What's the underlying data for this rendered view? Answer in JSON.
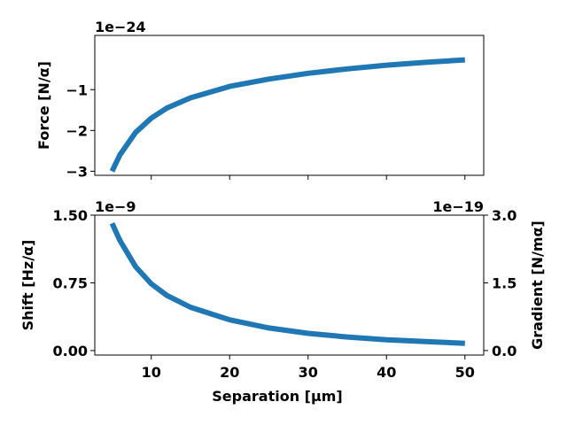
{
  "chart_data": [
    {
      "type": "line",
      "panel": "top",
      "ylabel": "Force [N/α]",
      "offset_text": "1e−24",
      "x": [
        5,
        6,
        8,
        10,
        12,
        15,
        20,
        25,
        30,
        35,
        40,
        45,
        50
      ],
      "series": [
        {
          "values": [
            -3.0,
            -2.6,
            -2.05,
            -1.7,
            -1.45,
            -1.2,
            -0.92,
            -0.74,
            -0.6,
            -0.49,
            -0.4,
            -0.33,
            -0.27
          ]
        }
      ],
      "xlim": [
        2.8,
        52.4
      ],
      "ylim": [
        -3.1,
        0.33
      ],
      "yticks": [
        -1,
        -2,
        -3
      ],
      "ytick_labels": [
        "−1",
        "−2",
        "−3"
      ],
      "xticks": [
        10,
        20,
        30,
        40,
        50
      ],
      "show_xtick_labels": false,
      "grid": false
    },
    {
      "type": "line",
      "panel": "bottom",
      "xlabel": "Separation [μm]",
      "ylabel": "Shift [Hz/α]",
      "y2label": "Gradient [N/mα]",
      "offset_text": "1e−9",
      "offset_text_right": "1e−19",
      "x": [
        5,
        6,
        8,
        10,
        12,
        15,
        20,
        25,
        30,
        35,
        40,
        45,
        50
      ],
      "series": [
        {
          "values": [
            1.41,
            1.22,
            0.93,
            0.74,
            0.61,
            0.48,
            0.34,
            0.25,
            0.19,
            0.15,
            0.12,
            0.1,
            0.08
          ]
        }
      ],
      "xlim": [
        2.8,
        52.4
      ],
      "ylim": [
        -0.05,
        1.5
      ],
      "yticks": [
        0.0,
        0.75,
        1.5
      ],
      "ytick_labels": [
        "0.00",
        "0.75",
        "1.50"
      ],
      "y2ticks_labels": [
        "0.0",
        "1.5",
        "3.0"
      ],
      "xticks": [
        10,
        20,
        30,
        40,
        50
      ],
      "xtick_labels": [
        "10",
        "20",
        "30",
        "40",
        "50"
      ],
      "grid": false
    }
  ],
  "colors": {
    "line": "#1f77b4",
    "axis": "#000000"
  }
}
